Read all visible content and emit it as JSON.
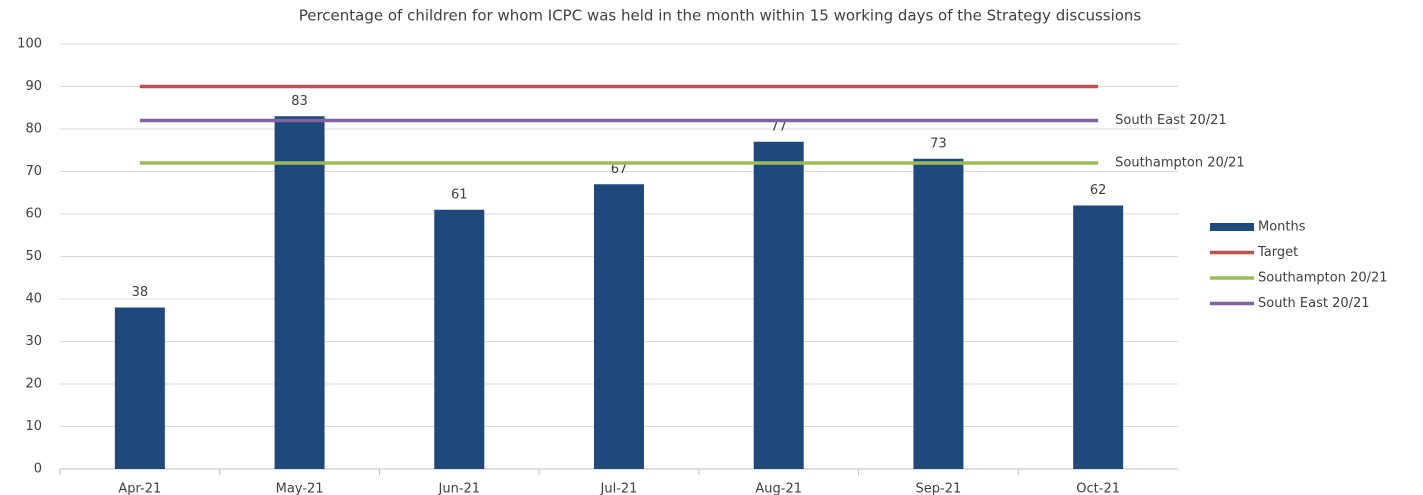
{
  "chart_data": {
    "type": "bar",
    "title": "Percentage of children for whom ICPC was held in the month within 15 working days of the Strategy discussions",
    "categories": [
      "Apr-21",
      "May-21",
      "Jun-21",
      "Jul-21",
      "Aug-21",
      "Sep-21",
      "Oct-21"
    ],
    "series": [
      {
        "name": "Months",
        "type": "bar",
        "color": "#1f497d",
        "values": [
          38,
          83,
          61,
          67,
          77,
          73,
          62
        ],
        "data_labels": true
      },
      {
        "name": "Target",
        "type": "line",
        "color": "#c0504d",
        "values": [
          90,
          90,
          90,
          90,
          90,
          90,
          90
        ]
      },
      {
        "name": "Southampton 20/21",
        "type": "line",
        "color": "#9bbb59",
        "values": [
          72,
          72,
          72,
          72,
          72,
          72,
          72
        ],
        "end_label": true
      },
      {
        "name": "South East 20/21",
        "type": "line",
        "color": "#8064a2",
        "values": [
          82,
          82,
          82,
          82,
          82,
          82,
          82
        ],
        "end_label": true
      }
    ],
    "ylim": [
      0,
      100
    ],
    "yticks": [
      0,
      10,
      20,
      30,
      40,
      50,
      60,
      70,
      80,
      90,
      100
    ],
    "grid": true,
    "legend": "right"
  }
}
